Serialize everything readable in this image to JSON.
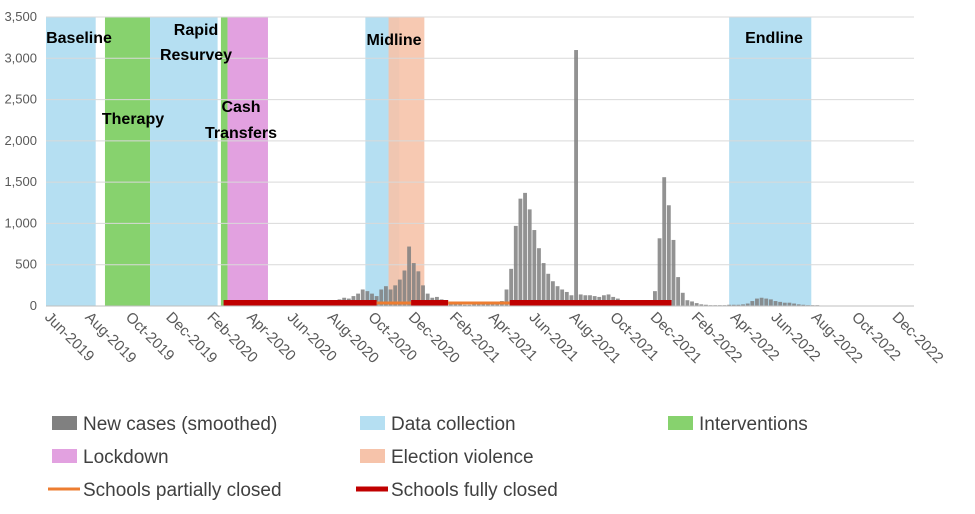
{
  "chart_data": {
    "type": "bar",
    "ylim": [
      0,
      3500
    ],
    "yticks": [
      0,
      500,
      1000,
      1500,
      2000,
      2500,
      3000,
      3500
    ],
    "ytick_labels": [
      "0",
      "500",
      "1,000",
      "1,500",
      "2,000",
      "2,500",
      "3,000",
      "3,500"
    ],
    "xlim": [
      "2019-06-01",
      "2023-01-01"
    ],
    "xticks": [
      "2019-06-01",
      "2019-08-01",
      "2019-10-01",
      "2019-12-01",
      "2020-02-01",
      "2020-04-01",
      "2020-06-01",
      "2020-08-01",
      "2020-10-01",
      "2020-12-01",
      "2021-02-01",
      "2021-04-01",
      "2021-06-01",
      "2021-08-01",
      "2021-10-01",
      "2021-12-01",
      "2022-02-01",
      "2022-04-01",
      "2022-06-01",
      "2022-08-01",
      "2022-10-01",
      "2022-12-01"
    ],
    "xtick_labels": [
      "Jun-2019",
      "Aug-2019",
      "Oct-2019",
      "Dec-2019",
      "Feb-2020",
      "Apr-2020",
      "Jun-2020",
      "Aug-2020",
      "Oct-2020",
      "Dec-2020",
      "Feb-2021",
      "Apr-2021",
      "Jun-2021",
      "Aug-2021",
      "Oct-2021",
      "Dec-2021",
      "Feb-2022",
      "Apr-2022",
      "Jun-2022",
      "Aug-2022",
      "Oct-2022",
      "Dec-2022"
    ],
    "grid": true,
    "legend_position": "bottom",
    "spans": [
      {
        "category": "Data collection",
        "label": "Baseline",
        "start": "2019-06-01",
        "end": "2019-08-15"
      },
      {
        "category": "Interventions",
        "label": "Therapy",
        "start": "2019-08-29",
        "end": "2019-11-05"
      },
      {
        "category": "Data collection",
        "label": "Rapid\nResurvey",
        "start": "2019-11-05",
        "end": "2020-02-15"
      },
      {
        "category": "Interventions",
        "label": "Cash\nTransfers",
        "start": "2020-02-20",
        "end": "2020-03-01"
      },
      {
        "category": "Lockdown",
        "label": "",
        "start": "2020-03-01",
        "end": "2020-05-01"
      },
      {
        "category": "Data collection",
        "label": "Midline",
        "start": "2020-09-25",
        "end": "2020-11-15"
      },
      {
        "category": "Election violence",
        "label": "",
        "start": "2020-10-30",
        "end": "2020-12-23"
      },
      {
        "category": "Data collection",
        "label": "Endline",
        "start": "2022-03-28",
        "end": "2022-07-30"
      }
    ],
    "school_closures": [
      {
        "category": "Schools fully closed",
        "start": "2020-02-24",
        "end": "2020-10-12"
      },
      {
        "category": "Schools partially closed",
        "start": "2020-10-12",
        "end": "2020-12-03"
      },
      {
        "category": "Schools fully closed",
        "start": "2020-12-03",
        "end": "2021-01-28"
      },
      {
        "category": "Schools partially closed",
        "start": "2021-01-28",
        "end": "2021-05-01"
      },
      {
        "category": "Schools fully closed",
        "start": "2021-05-01",
        "end": "2021-12-31"
      }
    ],
    "series": [
      {
        "name": "New cases (smoothed)",
        "x": [
          "2020-07-20",
          "2020-07-27",
          "2020-08-03",
          "2020-08-10",
          "2020-08-17",
          "2020-08-24",
          "2020-08-31",
          "2020-09-07",
          "2020-09-14",
          "2020-09-21",
          "2020-09-28",
          "2020-10-05",
          "2020-10-12",
          "2020-10-19",
          "2020-10-26",
          "2020-11-02",
          "2020-11-09",
          "2020-11-16",
          "2020-11-23",
          "2020-11-30",
          "2020-12-07",
          "2020-12-14",
          "2020-12-21",
          "2020-12-28",
          "2021-01-04",
          "2021-01-11",
          "2021-01-18",
          "2021-01-25",
          "2021-02-01",
          "2021-02-08",
          "2021-02-15",
          "2021-02-22",
          "2021-03-01",
          "2021-03-08",
          "2021-03-15",
          "2021-03-22",
          "2021-03-29",
          "2021-04-05",
          "2021-04-12",
          "2021-04-19",
          "2021-04-26",
          "2021-05-03",
          "2021-05-10",
          "2021-05-17",
          "2021-05-24",
          "2021-05-31",
          "2021-06-07",
          "2021-06-14",
          "2021-06-21",
          "2021-06-28",
          "2021-07-05",
          "2021-07-12",
          "2021-07-19",
          "2021-07-26",
          "2021-08-02",
          "2021-08-09",
          "2021-08-16",
          "2021-08-23",
          "2021-08-30",
          "2021-09-06",
          "2021-09-13",
          "2021-09-20",
          "2021-09-27",
          "2021-10-04",
          "2021-10-11",
          "2021-10-18",
          "2021-10-25",
          "2021-11-01",
          "2021-11-08",
          "2021-11-15",
          "2021-11-22",
          "2021-11-29",
          "2021-12-06",
          "2021-12-13",
          "2021-12-20",
          "2021-12-27",
          "2022-01-03",
          "2022-01-10",
          "2022-01-17",
          "2022-01-24",
          "2022-01-31",
          "2022-02-07",
          "2022-02-14",
          "2022-02-21",
          "2022-02-28",
          "2022-03-07",
          "2022-03-14",
          "2022-03-21",
          "2022-03-28",
          "2022-04-04",
          "2022-04-11",
          "2022-04-18",
          "2022-04-25",
          "2022-05-02",
          "2022-05-09",
          "2022-05-16",
          "2022-05-23",
          "2022-05-30",
          "2022-06-06",
          "2022-06-13",
          "2022-06-20",
          "2022-06-27",
          "2022-07-04",
          "2022-07-11",
          "2022-07-18",
          "2022-07-25",
          "2022-08-01",
          "2022-08-08"
        ],
        "values": [
          20,
          30,
          40,
          60,
          80,
          100,
          90,
          120,
          150,
          200,
          180,
          150,
          120,
          200,
          240,
          200,
          250,
          320,
          430,
          720,
          520,
          420,
          250,
          150,
          100,
          110,
          80,
          50,
          40,
          30,
          20,
          15,
          15,
          20,
          20,
          20,
          25,
          30,
          40,
          60,
          200,
          450,
          970,
          1300,
          1370,
          1170,
          920,
          700,
          520,
          390,
          300,
          240,
          200,
          170,
          130,
          3100,
          140,
          130,
          130,
          120,
          110,
          130,
          140,
          110,
          90,
          60,
          40,
          30,
          20,
          20,
          30,
          60,
          180,
          820,
          1560,
          1220,
          800,
          350,
          160,
          70,
          55,
          35,
          20,
          15,
          10,
          10,
          10,
          10,
          15,
          15,
          15,
          20,
          30,
          60,
          90,
          100,
          90,
          80,
          60,
          50,
          40,
          40,
          30,
          20,
          15,
          10,
          10,
          10
        ]
      }
    ],
    "legend": [
      {
        "label": "New cases (smoothed)",
        "kind": "box",
        "color": "#808080"
      },
      {
        "label": "Data collection",
        "kind": "box",
        "color": "#b5dff2"
      },
      {
        "label": "Interventions",
        "kind": "box",
        "color": "#87d26e"
      },
      {
        "label": "Lockdown",
        "kind": "box",
        "color": "#e2a1e0"
      },
      {
        "label": "Election violence",
        "kind": "box",
        "color": "#f6c3aa"
      },
      {
        "label": "Schools partially closed",
        "kind": "line",
        "color": "#ed7d31"
      },
      {
        "label": "Schools fully closed",
        "kind": "line",
        "color": "#c00000"
      }
    ],
    "colors": {
      "Data collection": "#b5dff2",
      "Interventions": "#87d26e",
      "Lockdown": "#e2a1e0",
      "Election violence": "#f6c3aa",
      "New cases (smoothed)": "#7f7f7f",
      "Schools partially closed": "#ed7d31",
      "Schools fully closed": "#c00000",
      "grid": "#d9d9d9"
    }
  }
}
